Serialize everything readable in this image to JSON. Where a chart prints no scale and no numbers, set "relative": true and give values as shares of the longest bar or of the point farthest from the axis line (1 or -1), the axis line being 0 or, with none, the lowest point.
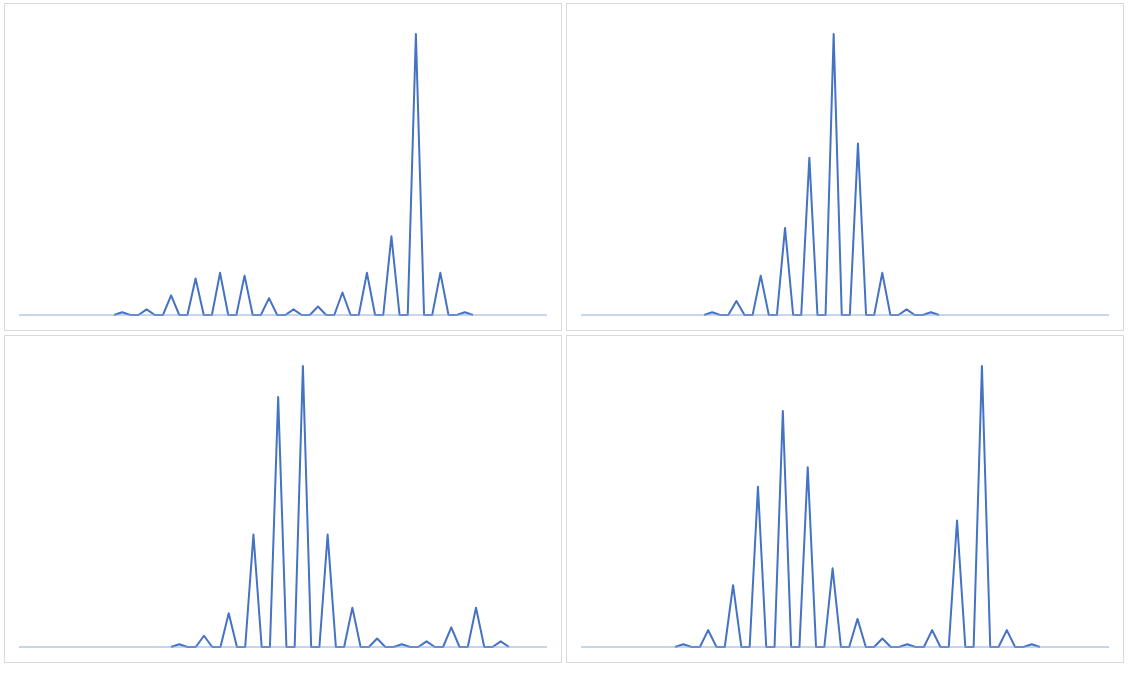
{
  "chart_data": [
    {
      "type": "line",
      "relative": true,
      "tick_labels": false,
      "color": "#4472c4",
      "categories": [
        null,
        null,
        null,
        null,
        null,
        null,
        null,
        null,
        null,
        null,
        null,
        null,
        null,
        null,
        null,
        null,
        null,
        null,
        null,
        null,
        null,
        null,
        null,
        null,
        null,
        null,
        null,
        null,
        null,
        null,
        null,
        null,
        null,
        null,
        null,
        null,
        null,
        null,
        null,
        null,
        null,
        null,
        null,
        null,
        null
      ],
      "values": [
        0,
        0.01,
        0,
        0,
        0.02,
        0,
        0,
        0.07,
        0,
        0,
        0.13,
        0,
        0,
        0.15,
        0,
        0,
        0.14,
        0,
        0,
        0.06,
        0,
        0,
        0.02,
        0,
        0,
        0.03,
        0,
        0,
        0.08,
        0,
        0,
        0.15,
        0,
        0,
        0.28,
        0,
        0,
        1,
        0,
        0,
        0.15,
        0,
        0,
        0.01,
        0
      ]
    },
    {
      "type": "line",
      "relative": true,
      "tick_labels": false,
      "color": "#4472c4",
      "categories": [
        null,
        null,
        null,
        null,
        null,
        null,
        null,
        null,
        null,
        null,
        null,
        null,
        null,
        null,
        null,
        null,
        null,
        null,
        null,
        null,
        null,
        null,
        null,
        null,
        null,
        null,
        null,
        null,
        null,
        null
      ],
      "values": [
        0,
        0.01,
        0,
        0,
        0.05,
        0,
        0,
        0.14,
        0,
        0,
        0.31,
        0,
        0,
        0.56,
        0,
        0,
        1,
        0,
        0,
        0.61,
        0,
        0,
        0.15,
        0,
        0,
        0.02,
        0,
        0,
        0.01,
        0
      ]
    },
    {
      "type": "line",
      "relative": true,
      "tick_labels": false,
      "color": "#4472c4",
      "categories": [
        null,
        null,
        null,
        null,
        null,
        null,
        null,
        null,
        null,
        null,
        null,
        null,
        null,
        null,
        null,
        null,
        null,
        null,
        null,
        null,
        null,
        null,
        null,
        null,
        null,
        null,
        null,
        null,
        null,
        null,
        null,
        null,
        null,
        null,
        null,
        null,
        null,
        null,
        null,
        null,
        null,
        null
      ],
      "values": [
        0,
        0.01,
        0,
        0,
        0.04,
        0,
        0,
        0.12,
        0,
        0,
        0.4,
        0,
        0,
        0.89,
        0,
        0,
        1,
        0,
        0,
        0.4,
        0,
        0,
        0.14,
        0,
        0,
        0.03,
        0,
        0,
        0.01,
        0,
        0,
        0.02,
        0,
        0,
        0.07,
        0,
        0,
        0.14,
        0,
        0,
        0.02,
        0
      ]
    },
    {
      "type": "line",
      "relative": true,
      "tick_labels": false,
      "color": "#4472c4",
      "categories": [
        null,
        null,
        null,
        null,
        null,
        null,
        null,
        null,
        null,
        null,
        null,
        null,
        null,
        null,
        null,
        null,
        null,
        null,
        null,
        null,
        null,
        null,
        null,
        null,
        null,
        null,
        null,
        null,
        null,
        null,
        null,
        null,
        null,
        null,
        null,
        null,
        null,
        null,
        null,
        null,
        null,
        null,
        null,
        null,
        null
      ],
      "values": [
        0,
        0.01,
        0,
        0,
        0.06,
        0,
        0,
        0.22,
        0,
        0,
        0.57,
        0,
        0,
        0.84,
        0,
        0,
        0.64,
        0,
        0,
        0.28,
        0,
        0,
        0.1,
        0,
        0,
        0.03,
        0,
        0,
        0.01,
        0,
        0,
        0.06,
        0,
        0,
        0.45,
        0,
        0,
        1,
        0,
        0,
        0.06,
        0,
        0,
        0.01,
        0
      ]
    }
  ]
}
